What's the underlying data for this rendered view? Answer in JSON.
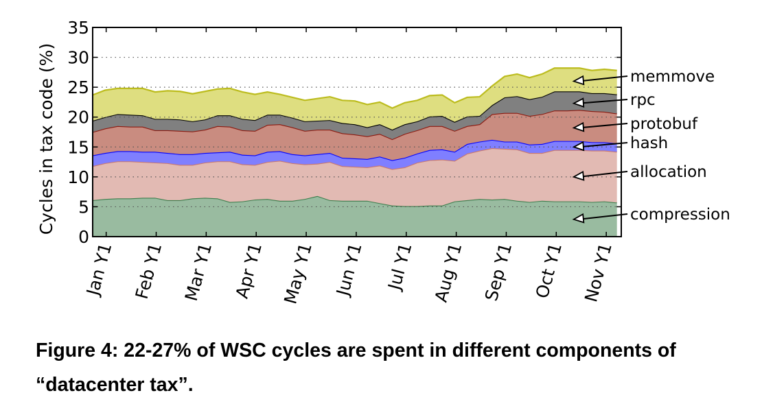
{
  "chart_data": {
    "type": "area",
    "stacked": true,
    "value_mode": "cumulative_top",
    "ylabel": "Cycles in tax code (%)",
    "xlabel": "",
    "ylim": [
      0,
      35
    ],
    "yticks": [
      0,
      5,
      10,
      15,
      20,
      25,
      30,
      35
    ],
    "xlim": [
      -0.27,
      10.3
    ],
    "xtick_positions": [
      0,
      1,
      2,
      3,
      4,
      5,
      6,
      7,
      8,
      9,
      10
    ],
    "xtick_labels": [
      "Jan Y1",
      "Feb Y1",
      "Mar Y1",
      "Apr Y1",
      "May Y1",
      "Jun Y1",
      "Jul Y1",
      "Aug Y1",
      "Sep Y1",
      "Oct Y1",
      "Nov Y1"
    ],
    "grid": "horizontal-dotted",
    "x_start": -0.27,
    "x_step": 0.2496,
    "series": [
      {
        "name": "compression",
        "fill": "#99bba0",
        "stroke": "#3b7d4c",
        "label_target": [
          9.35,
          2.9
        ],
        "values": [
          6.1,
          6.3,
          6.4,
          6.4,
          6.5,
          6.5,
          6.1,
          6.1,
          6.4,
          6.5,
          6.4,
          5.8,
          5.9,
          6.2,
          6.3,
          6.0,
          6.0,
          6.3,
          6.8,
          6.1,
          6.0,
          6.0,
          6.0,
          5.6,
          5.2,
          5.1,
          5.1,
          5.2,
          5.2,
          5.9,
          6.1,
          6.3,
          6.2,
          6.3,
          6.0,
          5.8,
          6.0,
          5.9,
          5.9,
          5.9,
          5.8,
          5.9,
          5.7
        ]
      },
      {
        "name": "allocation",
        "fill": "#e2bab3",
        "stroke": "#c9786e",
        "label_target": [
          9.35,
          10.0
        ],
        "values": [
          11.8,
          12.3,
          12.6,
          12.6,
          12.5,
          12.4,
          12.3,
          12.0,
          12.0,
          12.4,
          12.6,
          12.6,
          12.1,
          12.0,
          12.5,
          12.7,
          12.3,
          12.1,
          12.2,
          12.5,
          11.8,
          11.7,
          11.6,
          11.9,
          11.3,
          11.6,
          12.4,
          12.8,
          12.9,
          12.7,
          13.9,
          14.4,
          14.8,
          14.7,
          14.6,
          14.0,
          14.0,
          14.5,
          14.5,
          14.5,
          14.4,
          14.4,
          14.2
        ]
      },
      {
        "name": "hash",
        "fill": "#7f7fff",
        "stroke": "#0000ff",
        "label_target": [
          9.35,
          15.0
        ],
        "values": [
          13.6,
          14.0,
          14.3,
          14.3,
          14.2,
          14.2,
          14.0,
          13.8,
          13.8,
          14.0,
          14.1,
          14.2,
          13.7,
          13.6,
          14.2,
          14.3,
          13.8,
          13.6,
          13.8,
          14.0,
          13.2,
          13.1,
          13.0,
          13.4,
          12.8,
          13.2,
          13.9,
          14.5,
          14.6,
          14.2,
          15.5,
          15.9,
          16.2,
          15.9,
          15.9,
          15.4,
          15.5,
          16.0,
          16.0,
          16.0,
          15.8,
          15.8,
          15.6
        ]
      },
      {
        "name": "protobuf",
        "fill": "#c98c80",
        "stroke": "#8b1a10",
        "label_target": [
          9.35,
          18.2
        ],
        "values": [
          17.5,
          18.1,
          18.5,
          18.4,
          18.4,
          17.8,
          17.8,
          17.7,
          17.6,
          17.9,
          18.5,
          18.4,
          17.8,
          17.7,
          18.7,
          18.8,
          18.3,
          17.7,
          17.9,
          17.9,
          17.3,
          17.1,
          16.8,
          17.2,
          16.3,
          17.2,
          17.8,
          18.5,
          18.5,
          17.7,
          18.5,
          18.8,
          20.5,
          20.7,
          20.7,
          20.2,
          20.5,
          21.1,
          21.1,
          21.2,
          21.0,
          20.9,
          20.6
        ]
      },
      {
        "name": "rpc",
        "fill": "#808080",
        "stroke": "#000000",
        "label_target": [
          9.35,
          22.3
        ],
        "values": [
          19.4,
          20.0,
          20.5,
          20.4,
          20.3,
          19.7,
          19.7,
          19.6,
          19.3,
          19.6,
          20.3,
          20.3,
          19.7,
          19.5,
          20.4,
          20.4,
          19.9,
          19.3,
          19.4,
          19.5,
          19.0,
          18.8,
          18.3,
          18.8,
          17.9,
          18.8,
          19.3,
          20.1,
          20.2,
          19.2,
          20.1,
          20.2,
          22.0,
          23.3,
          23.5,
          23.0,
          23.4,
          24.3,
          24.3,
          24.3,
          24.0,
          24.0,
          23.8
        ]
      },
      {
        "name": "memmove",
        "fill": "#dede80",
        "stroke": "#bcbc1e",
        "label_target": [
          9.35,
          26.0
        ],
        "values": [
          23.7,
          24.5,
          24.8,
          24.8,
          24.8,
          24.2,
          24.4,
          24.3,
          23.9,
          24.3,
          24.7,
          24.8,
          24.2,
          23.8,
          24.2,
          23.8,
          23.3,
          22.8,
          23.1,
          23.4,
          22.8,
          22.7,
          22.1,
          22.5,
          21.5,
          22.4,
          22.8,
          23.6,
          23.7,
          22.4,
          23.3,
          23.4,
          25.2,
          26.8,
          27.2,
          26.6,
          27.2,
          28.2,
          28.2,
          28.2,
          27.8,
          28.0,
          27.8
        ]
      }
    ],
    "legend_placement": "right-annotations",
    "legend_order": [
      "memmove",
      "rpc",
      "protobuf",
      "hash",
      "allocation",
      "compression"
    ]
  },
  "caption": {
    "text": "Figure 4: 22-27% of WSC cycles are spent in different components of “datacenter tax”."
  }
}
